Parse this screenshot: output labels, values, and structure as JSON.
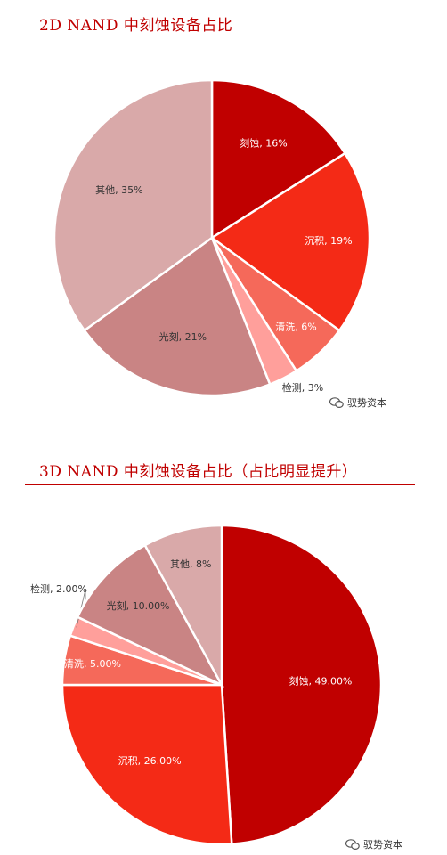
{
  "watermark": "驭势资本",
  "chart_data": [
    {
      "type": "pie",
      "title": "2D NAND 中刻蚀设备占比",
      "slices": [
        {
          "label": "刻蚀, 16%",
          "value": 16,
          "color": "#c00000",
          "text_color": "#ffffff"
        },
        {
          "label": "沉积, 19%",
          "value": 19,
          "color": "#f42a16",
          "text_color": "#ffffff"
        },
        {
          "label": "清洗, 6%",
          "value": 6,
          "color": "#f5695a",
          "text_color": "#ffffff"
        },
        {
          "label": "检测, 3%",
          "value": 3,
          "color": "#ff9f9b",
          "text_color": "#333333"
        },
        {
          "label": "光刻, 21%",
          "value": 21,
          "color": "#c98484",
          "text_color": "#333333"
        },
        {
          "label": "其他, 35%",
          "value": 35,
          "color": "#d9a9a9",
          "text_color": "#333333"
        }
      ]
    },
    {
      "type": "pie",
      "title": "3D NAND 中刻蚀设备占比（占比明显提升）",
      "slices": [
        {
          "label": "刻蚀, 49.00%",
          "value": 49,
          "color": "#c00000",
          "text_color": "#ffffff"
        },
        {
          "label": "沉积, 26.00%",
          "value": 26,
          "color": "#f42a16",
          "text_color": "#ffffff"
        },
        {
          "label": "清洗, 5.00%",
          "value": 5,
          "color": "#f5695a",
          "text_color": "#ffffff"
        },
        {
          "label": "检测, 2.00%",
          "value": 2,
          "color": "#ff9f9b",
          "text_color": "#333333"
        },
        {
          "label": "光刻, 10.00%",
          "value": 10,
          "color": "#c98484",
          "text_color": "#333333"
        },
        {
          "label": "其他, 8%",
          "value": 8,
          "color": "#d9a9a9",
          "text_color": "#333333"
        }
      ]
    }
  ]
}
